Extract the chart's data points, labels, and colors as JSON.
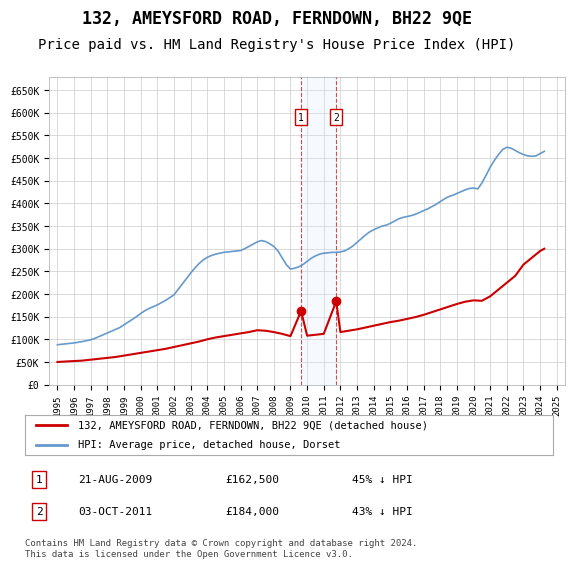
{
  "title": "132, AMEYSFORD ROAD, FERNDOWN, BH22 9QE",
  "subtitle": "Price paid vs. HM Land Registry's House Price Index (HPI)",
  "title_fontsize": 12,
  "subtitle_fontsize": 10,
  "background_color": "#ffffff",
  "grid_color": "#cccccc",
  "hpi_color": "#6699cc",
  "price_color": "#cc0000",
  "marker_color": "#cc0000",
  "shade_color": "#ddeeff",
  "dashed_line_color": "#cc0000",
  "legend_entry1": "132, AMEYSFORD ROAD, FERNDOWN, BH22 9QE (detached house)",
  "legend_entry2": "HPI: Average price, detached house, Dorset",
  "transactions": [
    {
      "label": "1",
      "date": "21-AUG-2009",
      "price": 162500,
      "pct": "45%",
      "x": 2009.64
    },
    {
      "label": "2",
      "date": "03-OCT-2011",
      "price": 184000,
      "pct": "43%",
      "x": 2011.75
    }
  ],
  "footer": "Contains HM Land Registry data © Crown copyright and database right 2024.\nThis data is licensed under the Open Government Licence v3.0.",
  "ylim": [
    0,
    680000
  ],
  "xlim": [
    1994.5,
    2025.5
  ],
  "yticks": [
    0,
    50000,
    100000,
    150000,
    200000,
    250000,
    300000,
    350000,
    400000,
    450000,
    500000,
    550000,
    600000,
    650000
  ],
  "ytick_labels": [
    "£0",
    "£50K",
    "£100K",
    "£150K",
    "£200K",
    "£250K",
    "£300K",
    "£350K",
    "£400K",
    "£450K",
    "£500K",
    "£550K",
    "£600K",
    "£650K"
  ],
  "xticks": [
    1995,
    1996,
    1997,
    1998,
    1999,
    2000,
    2001,
    2002,
    2003,
    2004,
    2005,
    2006,
    2007,
    2008,
    2009,
    2010,
    2011,
    2012,
    2013,
    2014,
    2015,
    2016,
    2017,
    2018,
    2019,
    2020,
    2021,
    2022,
    2023,
    2024,
    2025
  ],
  "hpi_x": [
    1995,
    1995.25,
    1995.5,
    1995.75,
    1996,
    1996.25,
    1996.5,
    1996.75,
    1997,
    1997.25,
    1997.5,
    1997.75,
    1998,
    1998.25,
    1998.5,
    1998.75,
    1999,
    1999.25,
    1999.5,
    1999.75,
    2000,
    2000.25,
    2000.5,
    2000.75,
    2001,
    2001.25,
    2001.5,
    2001.75,
    2002,
    2002.25,
    2002.5,
    2002.75,
    2003,
    2003.25,
    2003.5,
    2003.75,
    2004,
    2004.25,
    2004.5,
    2004.75,
    2005,
    2005.25,
    2005.5,
    2005.75,
    2006,
    2006.25,
    2006.5,
    2006.75,
    2007,
    2007.25,
    2007.5,
    2007.75,
    2008,
    2008.25,
    2008.5,
    2008.75,
    2009,
    2009.25,
    2009.5,
    2009.75,
    2010,
    2010.25,
    2010.5,
    2010.75,
    2011,
    2011.25,
    2011.5,
    2011.75,
    2012,
    2012.25,
    2012.5,
    2012.75,
    2013,
    2013.25,
    2013.5,
    2013.75,
    2014,
    2014.25,
    2014.5,
    2014.75,
    2015,
    2015.25,
    2015.5,
    2015.75,
    2016,
    2016.25,
    2016.5,
    2016.75,
    2017,
    2017.25,
    2017.5,
    2017.75,
    2018,
    2018.25,
    2018.5,
    2018.75,
    2019,
    2019.25,
    2019.5,
    2019.75,
    2020,
    2020.25,
    2020.5,
    2020.75,
    2021,
    2021.25,
    2021.5,
    2021.75,
    2022,
    2022.25,
    2022.5,
    2022.75,
    2023,
    2023.25,
    2023.5,
    2023.75,
    2024,
    2024.25
  ],
  "hpi_y": [
    88000,
    89000,
    90000,
    91000,
    92000,
    93500,
    95000,
    97000,
    99000,
    102000,
    106000,
    110000,
    114000,
    118000,
    122000,
    126000,
    132000,
    138000,
    144000,
    150000,
    157000,
    163000,
    168000,
    172000,
    176000,
    181000,
    186000,
    192000,
    198000,
    210000,
    222000,
    234000,
    246000,
    257000,
    267000,
    275000,
    281000,
    285000,
    288000,
    290000,
    292000,
    293000,
    294000,
    295000,
    296000,
    300000,
    305000,
    310000,
    315000,
    318000,
    316000,
    311000,
    305000,
    295000,
    280000,
    265000,
    255000,
    257000,
    260000,
    265000,
    272000,
    279000,
    284000,
    288000,
    290000,
    291000,
    292000,
    292000,
    293000,
    295000,
    300000,
    306000,
    314000,
    322000,
    330000,
    337000,
    342000,
    346000,
    350000,
    352000,
    356000,
    361000,
    366000,
    369000,
    371000,
    373000,
    376000,
    380000,
    384000,
    388000,
    393000,
    398000,
    404000,
    410000,
    415000,
    418000,
    422000,
    426000,
    430000,
    433000,
    434000,
    432000,
    445000,
    462000,
    480000,
    495000,
    508000,
    519000,
    524000,
    522000,
    517000,
    512000,
    508000,
    505000,
    504000,
    505000,
    510000,
    515000
  ],
  "price_x": [
    1995,
    1995.5,
    1996,
    1996.5,
    1997,
    1997.5,
    1998,
    1998.5,
    1999,
    1999.5,
    2000,
    2000.5,
    2001,
    2001.5,
    2002,
    2002.5,
    2003,
    2003.5,
    2004,
    2004.5,
    2005,
    2005.5,
    2006,
    2006.5,
    2007,
    2007.5,
    2008,
    2008.5,
    2009,
    2009.64,
    2010,
    2010.5,
    2011,
    2011.75,
    2012,
    2012.5,
    2013,
    2013.5,
    2014,
    2014.5,
    2015,
    2015.5,
    2016,
    2016.5,
    2017,
    2017.5,
    2018,
    2018.5,
    2019,
    2019.5,
    2020,
    2020.5,
    2021,
    2021.5,
    2022,
    2022.5,
    2023,
    2023.5,
    2024,
    2024.25
  ],
  "price_y": [
    50000,
    51000,
    52000,
    53000,
    55000,
    57000,
    59000,
    61000,
    64000,
    67000,
    70000,
    73000,
    76000,
    79000,
    83000,
    87000,
    91000,
    95000,
    100000,
    104000,
    107000,
    110000,
    113000,
    116000,
    120000,
    119000,
    116000,
    112000,
    107000,
    162500,
    108000,
    110000,
    112000,
    184000,
    116000,
    119000,
    122000,
    126000,
    130000,
    134000,
    138000,
    141000,
    145000,
    149000,
    154000,
    160000,
    166000,
    172000,
    178000,
    183000,
    186000,
    185000,
    195000,
    210000,
    225000,
    240000,
    265000,
    280000,
    295000,
    300000
  ]
}
